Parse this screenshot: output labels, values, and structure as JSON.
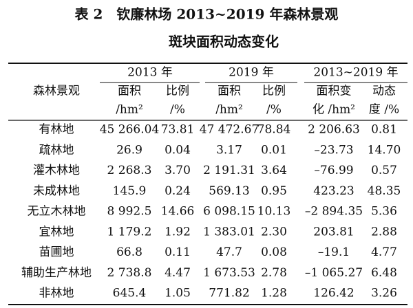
{
  "title": {
    "line1": "表 2　钦廉林场 2013~2019 年森林景观",
    "line2": "斑块面积动态变化"
  },
  "table": {
    "header": {
      "row_label": "森林景观",
      "groups": [
        "2013 年",
        "2019 年",
        "2013~2019 年"
      ],
      "columns": [
        [
          "面积",
          "/hm²"
        ],
        [
          "比例",
          "/%"
        ],
        [
          "面积",
          "/hm²"
        ],
        [
          "比例",
          "/%"
        ],
        [
          "面积变",
          "化 /hm²"
        ],
        [
          "动态",
          "度 /%"
        ]
      ]
    },
    "rows": [
      [
        "有林地",
        "45 266.04",
        "73.81",
        "47 472.67",
        "78.84",
        "2 206.63",
        "0.81"
      ],
      [
        "疏林地",
        "26.9",
        "0.04",
        "3.17",
        "0.01",
        "–23.73",
        "14.70"
      ],
      [
        "灌木林地",
        "2 268.3",
        "3.70",
        "2 191.31",
        "3.64",
        "–76.99",
        "0.57"
      ],
      [
        "未成林地",
        "145.9",
        "0.24",
        "569.13",
        "0.95",
        "423.23",
        "48.35"
      ],
      [
        "无立木林地",
        "8 992.5",
        "14.66",
        "6 098.15",
        "10.13",
        "–2 894.35",
        "5.36"
      ],
      [
        "宜林地",
        "1 179.2",
        "1.92",
        "1 383.01",
        "2.30",
        "203.81",
        "2.88"
      ],
      [
        "苗圃地",
        "66.8",
        "0.11",
        "47.7",
        "0.08",
        "–19.1",
        "4.77"
      ],
      [
        "辅助生产林地",
        "2 738.8",
        "4.47",
        "1 673.53",
        "2.78",
        "–1 065.27",
        "6.48"
      ],
      [
        "非林地",
        "645.4",
        "1.05",
        "771.82",
        "1.28",
        "126.42",
        "3.26"
      ]
    ]
  }
}
